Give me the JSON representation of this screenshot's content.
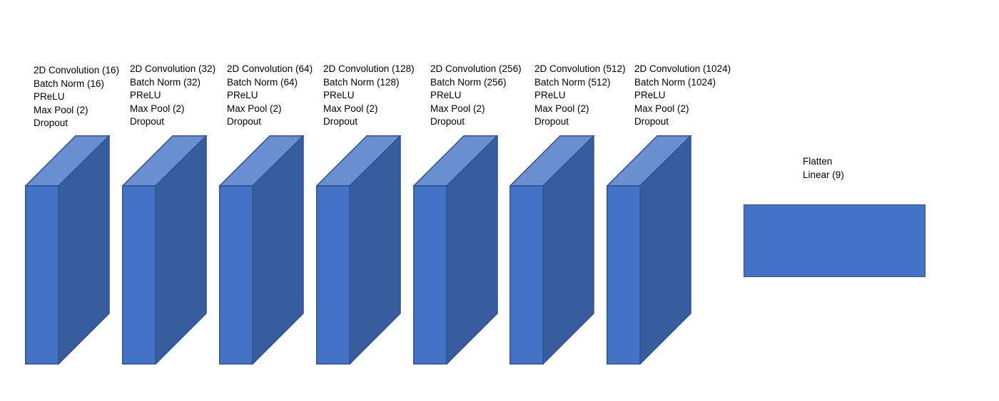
{
  "colors": {
    "front_face": "#4472c4",
    "side_face": "#375d9e",
    "top_face": "#6a8fd0",
    "edge": "#2f528f"
  },
  "conv_blocks": [
    {
      "lines": [
        "2D Convolution (16)",
        "Batch Norm (16)",
        "PReLU",
        "Max Pool (2)",
        "Dropout"
      ]
    },
    {
      "lines": [
        "2D Convolution (32)",
        "Batch Norm (32)",
        "PReLU",
        "Max Pool (2)",
        "Dropout"
      ]
    },
    {
      "lines": [
        "2D Convolution (64)",
        "Batch Norm (64)",
        "PReLU",
        "Max Pool (2)",
        "Dropout"
      ]
    },
    {
      "lines": [
        "2D Convolution (128)",
        "Batch Norm (128)",
        "PReLU",
        "Max Pool (2)",
        "Dropout"
      ]
    },
    {
      "lines": [
        "2D Convolution (256)",
        "Batch Norm (256)",
        "PReLU",
        "Max Pool (2)",
        "Dropout"
      ]
    },
    {
      "lines": [
        "2D Convolution (512)",
        "Batch Norm (512)",
        "PReLU",
        "Max Pool (2)",
        "Dropout"
      ]
    },
    {
      "lines": [
        "2D Convolution (1024)",
        "Batch Norm (1024)",
        "PReLU",
        "Max Pool (2)",
        "Dropout"
      ]
    }
  ],
  "head_block": {
    "lines": [
      "Flatten",
      "Linear (9)"
    ]
  }
}
